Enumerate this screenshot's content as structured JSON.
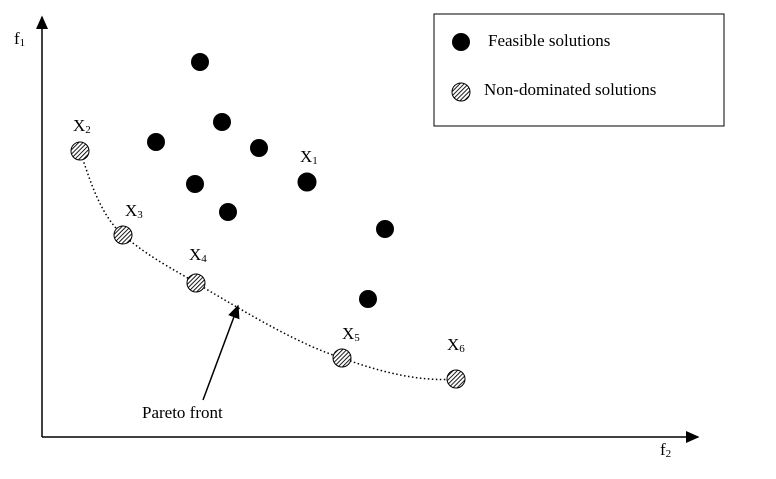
{
  "axes": {
    "y_label": {
      "text": "f",
      "subscript": "1"
    },
    "x_label": {
      "text": "f",
      "subscript": "2"
    }
  },
  "legend": {
    "items": [
      {
        "label": "Feasible solutions"
      },
      {
        "label": "Non-dominated solutions"
      }
    ]
  },
  "points": [
    {
      "text": "X",
      "subscript": "1"
    },
    {
      "text": "X",
      "subscript": "2"
    },
    {
      "text": "X",
      "subscript": "3"
    },
    {
      "text": "X",
      "subscript": "4"
    },
    {
      "text": "X",
      "subscript": "5"
    },
    {
      "text": "X",
      "subscript": "6"
    }
  ],
  "annotation": "Pareto front"
}
